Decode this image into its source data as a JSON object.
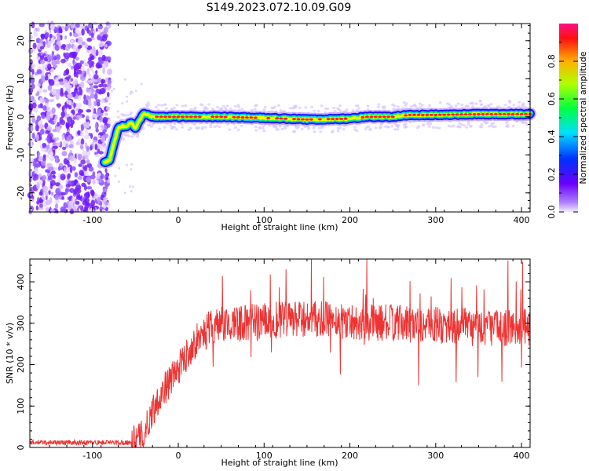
{
  "title": "S149.2023.072.10.09.G09",
  "chart_data": [
    {
      "type": "heatmap",
      "xlabel": "Height of straight line (km)",
      "ylabel": "Frequency (Hz)",
      "xlim": [
        -173,
        410
      ],
      "ylim": [
        -25,
        24.5
      ],
      "x_ticks": [
        -100,
        0,
        100,
        200,
        300,
        400
      ],
      "y_ticks": [
        -20,
        -10,
        0,
        10,
        20
      ],
      "colorbar": {
        "label": "Normalized spectral amplitude",
        "range": [
          0,
          1
        ],
        "ticks": [
          0.0,
          0.2,
          0.4,
          0.6,
          0.8
        ]
      },
      "ridge": {
        "x": [
          -85,
          -80,
          -75,
          -70,
          -65,
          -60,
          -55,
          -50,
          -45,
          -40,
          -30,
          0,
          50,
          100,
          150,
          200,
          220,
          250,
          270,
          300,
          350,
          410
        ],
        "y": [
          -12,
          -11.5,
          -7,
          -3,
          -2.5,
          -2.5,
          -1.5,
          -3,
          -1,
          1,
          0,
          0,
          0,
          -0.3,
          -0.7,
          -0.5,
          0,
          0,
          0.5,
          0.5,
          0.7,
          0.7
        ]
      }
    },
    {
      "type": "line",
      "xlabel": "Height of straight line (km)",
      "ylabel": "SNR (10 * v/v)",
      "xlim": [
        -173,
        410
      ],
      "ylim": [
        0,
        455
      ],
      "x_ticks": [
        -100,
        0,
        100,
        200,
        300,
        400
      ],
      "y_ticks": [
        0,
        100,
        200,
        300,
        400
      ],
      "line_color": "#ee3333",
      "trend": {
        "x": [
          -173,
          -60,
          -50,
          -40,
          -30,
          -20,
          -10,
          0,
          10,
          20,
          30,
          50,
          100,
          150,
          200,
          250,
          300,
          350,
          410
        ],
        "y": [
          12,
          12,
          15,
          30,
          90,
          130,
          160,
          190,
          225,
          255,
          280,
          295,
          305,
          310,
          305,
          300,
          295,
          290,
          290
        ]
      },
      "noise_amplitude": 45
    }
  ]
}
